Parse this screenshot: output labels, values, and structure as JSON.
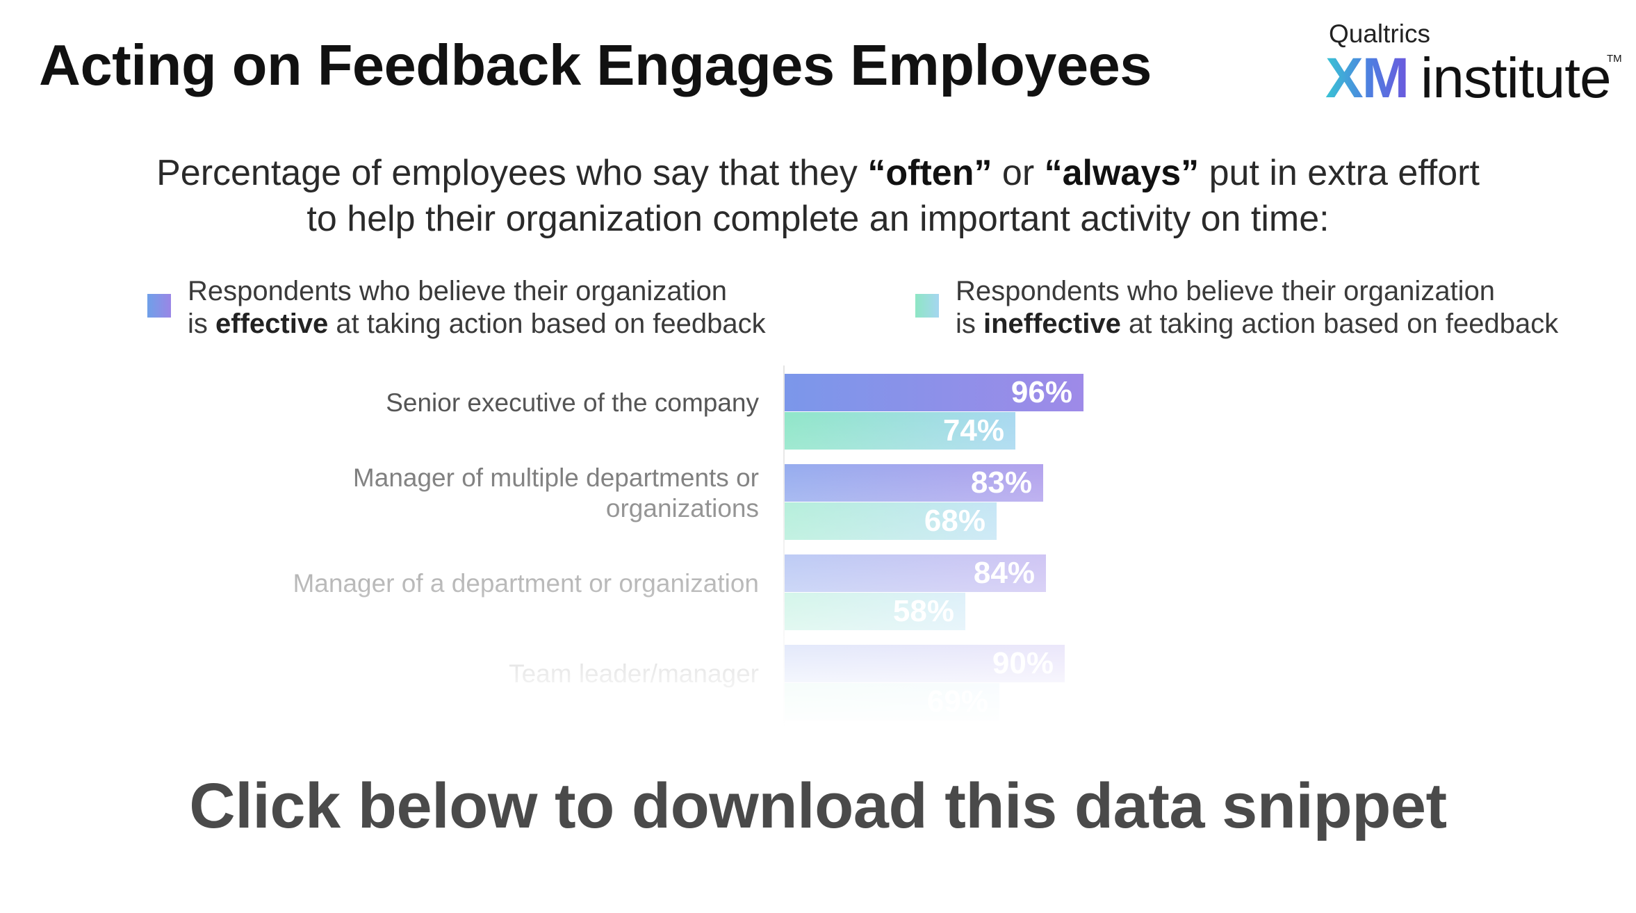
{
  "header": {
    "title": "Acting on Feedback Engages Employees"
  },
  "logo": {
    "top_text": "Qualtrics",
    "xm_text": "XM",
    "institute_text": "institute",
    "tm_text": "TM"
  },
  "subtitle": {
    "line1_part1": "Percentage of employees who say that they ",
    "line1_bold1": "“often”",
    "line1_part2": " or ",
    "line1_bold2": "“always”",
    "line1_part3": " put in extra effort",
    "line2": "to help their organization complete an important activity on time:"
  },
  "legend": [
    {
      "line1": "Respondents who believe their organization",
      "prefix": "is ",
      "bold": "effective",
      "suffix": " at taking action based on feedback",
      "color": "#7b7fe6"
    },
    {
      "line1": "Respondents who believe their organization",
      "prefix": "is ",
      "bold": "ineffective",
      "suffix": " at taking action based on feedback",
      "color": "#8fe2d6"
    }
  ],
  "chart_data": {
    "type": "bar",
    "orientation": "horizontal",
    "categories": [
      "Senior executive of the company",
      "Manager of multiple departments or organizations",
      "Manager of a department or organization",
      "Team leader/manager"
    ],
    "series": [
      {
        "name": "Respondents who believe their organization is effective at taking action based on feedback",
        "values": [
          96,
          83,
          84,
          90
        ],
        "labels": [
          "96%",
          "83%",
          "84%",
          "90%"
        ],
        "color_start": "#7b97ea",
        "color_end": "#9e8ae8"
      },
      {
        "name": "Respondents who believe their organization is ineffective at taking action based on feedback",
        "values": [
          74,
          68,
          58,
          69
        ],
        "labels": [
          "74%",
          "68%",
          "58%",
          "69%"
        ],
        "color_start": "#8fe6c8",
        "color_end": "#a7d8f0"
      }
    ],
    "xlim": [
      0,
      100
    ],
    "grid": false,
    "legend_position": "top"
  },
  "cta": {
    "text": "Click below to download this data snippet"
  }
}
